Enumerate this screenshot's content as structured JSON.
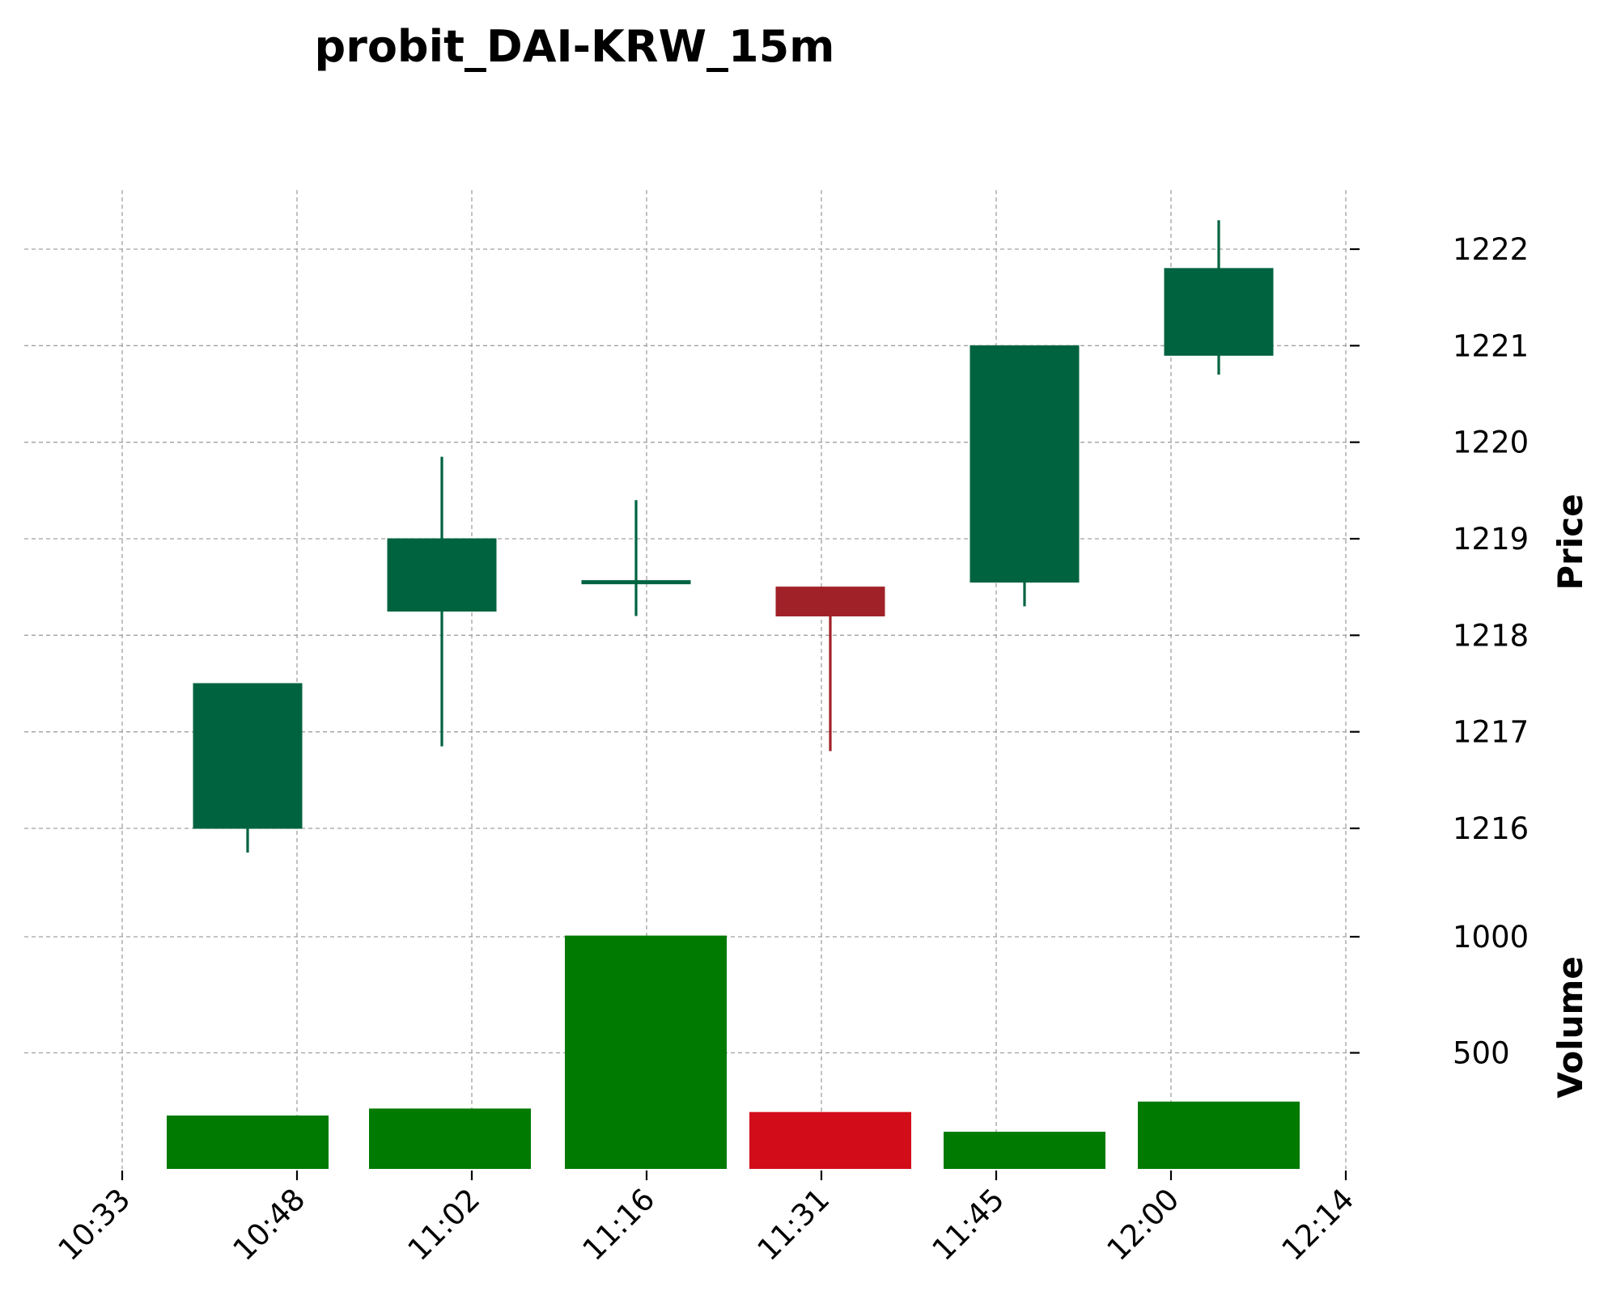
{
  "chart_data": {
    "type": "candlestick",
    "title": "probit_DAI-KRW_15m",
    "price_axis": {
      "label": "Price",
      "position": "right",
      "ticks": [
        1216,
        1217,
        1218,
        1219,
        1220,
        1221,
        1222
      ],
      "range": [
        1215.6,
        1222.6
      ]
    },
    "volume_axis": {
      "label": "Volume",
      "position": "right",
      "ticks": [
        500,
        1000
      ],
      "range": [
        0,
        1100
      ]
    },
    "x_axis": {
      "tick_labels": [
        "10:33",
        "10:48",
        "11:02",
        "11:16",
        "11:31",
        "11:45",
        "12:00",
        "12:14"
      ]
    },
    "grid": true,
    "colors": {
      "up_candle": "#006340",
      "down_candle": "#a02128",
      "up_volume": "#007a00",
      "down_volume": "#d20d19",
      "grid": "#a0a0a0"
    },
    "candles": [
      {
        "open": 1216.0,
        "high": 1217.5,
        "low": 1215.75,
        "close": 1217.5,
        "volume": 230
      },
      {
        "open": 1218.25,
        "high": 1219.85,
        "low": 1216.85,
        "close": 1219.0,
        "volume": 260
      },
      {
        "open": 1218.55,
        "high": 1219.4,
        "low": 1218.2,
        "close": 1218.55,
        "volume": 1005
      },
      {
        "open": 1218.5,
        "high": 1218.5,
        "low": 1216.8,
        "close": 1218.2,
        "volume": 245
      },
      {
        "open": 1218.55,
        "high": 1221.0,
        "low": 1218.3,
        "close": 1221.0,
        "volume": 160
      },
      {
        "open": 1220.9,
        "high": 1222.3,
        "low": 1220.7,
        "close": 1221.8,
        "volume": 290
      }
    ]
  }
}
